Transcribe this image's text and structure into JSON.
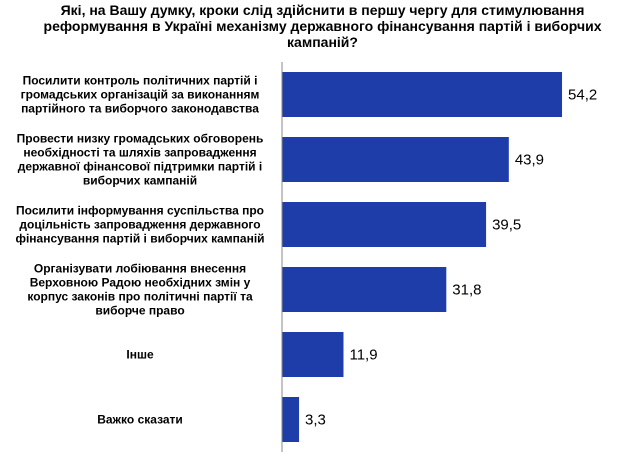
{
  "chart_data": {
    "type": "bar",
    "orientation": "horizontal",
    "title": "Які, на Вашу думку, кроки слід здійснити в першу чергу для стимулювання реформування в Україні механізму державного фінансування партій і виборчих кампаній?",
    "categories": [
      "Посилити контроль політичних партій і громадських організацій за виконанням партійного та виборчого законодавства",
      "Провести низку громадських обговорень необхідності та шляхів запровадження державної фінансової підтримки партій і виборчих кампаній",
      "Посилити інформування суспільства про доцільність запровадження державного фінансування партій і виборчих кампаній",
      "Організувати лобіювання внесення Верховною Радою необхідних змін у корпус законів про політичні партії та виборче право",
      "Інше",
      "Важко сказати"
    ],
    "category_lines": [
      [
        "Посилити контроль політичних партій і",
        "громадських організацій за виконанням",
        "партійного та виборчого законодавства"
      ],
      [
        "Провести низку громадських обговорень",
        "необхідності та шляхів запровадження",
        "державної фінансової підтримки партій і",
        "виборчих кампаній"
      ],
      [
        "Посилити інформування суспільства про",
        "доцільність запровадження державного",
        "фінансування  партій і виборчих кампаній"
      ],
      [
        "Організувати лобіювання внесення",
        "Верховною Радою  необхідних змін у",
        "корпус законів про політичні партії та",
        "виборче право"
      ],
      [
        "Інше"
      ],
      [
        "Важко сказати"
      ]
    ],
    "values": [
      54.2,
      43.9,
      39.5,
      31.8,
      11.9,
      3.3
    ],
    "value_labels": [
      "54,2",
      "43,9",
      "39,5",
      "31,8",
      "11,9",
      "3,3"
    ],
    "xlim": [
      0,
      60
    ],
    "grid": false,
    "legend": "none",
    "bar_color": "#1f3da8"
  }
}
